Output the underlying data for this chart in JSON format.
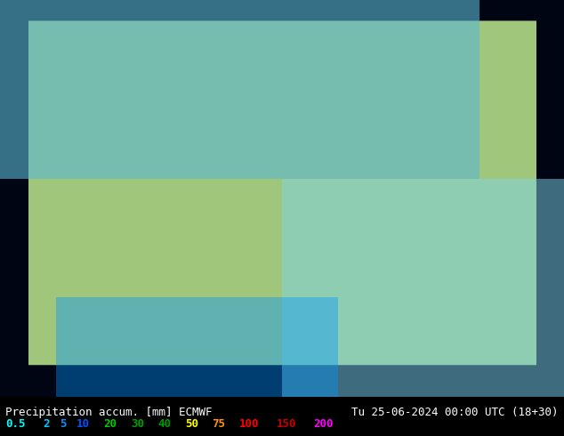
{
  "title_left": "Precipitation accum. [mm] ECMWF",
  "title_right": "Tu 25-06-2024 00:00 UTC (18+30)",
  "legend_values": [
    "0.5",
    "2",
    "5",
    "10",
    "20",
    "30",
    "40",
    "50",
    "75",
    "100",
    "150",
    "200"
  ],
  "legend_colors": [
    "#a0ffff",
    "#00cdff",
    "#0096ff",
    "#0050ff",
    "#00c800",
    "#00a000",
    "#009600",
    "#ffff00",
    "#ff9600",
    "#ff0000",
    "#c80000",
    "#ff00ff"
  ],
  "background_color": "#000000",
  "text_color_title": "#000000",
  "fig_bg": "#c8c8c8",
  "map_bg": "#a0c87d",
  "bottom_bar_bg": "#000000",
  "figsize": [
    6.34,
    4.9
  ],
  "dpi": 100
}
